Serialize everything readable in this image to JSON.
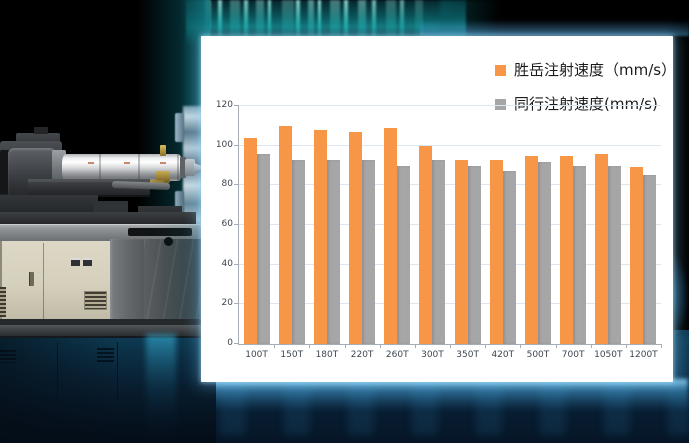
{
  "chart_data": {
    "type": "bar",
    "title": "",
    "xlabel": "",
    "ylabel": "",
    "categories": [
      "100T",
      "150T",
      "180T",
      "220T",
      "260T",
      "300T",
      "350T",
      "420T",
      "500T",
      "700T",
      "1050T",
      "1200T"
    ],
    "series": [
      {
        "name": "胜岳注射速度（mm/s）",
        "color": "#F79646",
        "values": [
          104,
          110,
          108,
          107,
          109,
          100,
          93,
          93,
          95,
          95,
          96,
          89
        ]
      },
      {
        "name": "同行注射速度(mm/s)",
        "color": "#A6A6A6",
        "values": [
          96,
          93,
          93,
          93,
          90,
          93,
          90,
          87,
          92,
          90,
          90,
          85
        ]
      }
    ],
    "ylim": [
      0,
      120
    ],
    "y_ticks": [
      0,
      20,
      40,
      60,
      80,
      100,
      120
    ],
    "grid": true,
    "legend_position": "top-right"
  },
  "colors": {
    "series_orange": "#F79646",
    "series_gray": "#A6A6A6",
    "gridline": "#DCE6F2",
    "axis_line": "#A6ADB5",
    "panel_background": "#FFFFFF",
    "background_teal_glow": "#0D7276",
    "background_bottom_blue": "#0B2C44"
  }
}
